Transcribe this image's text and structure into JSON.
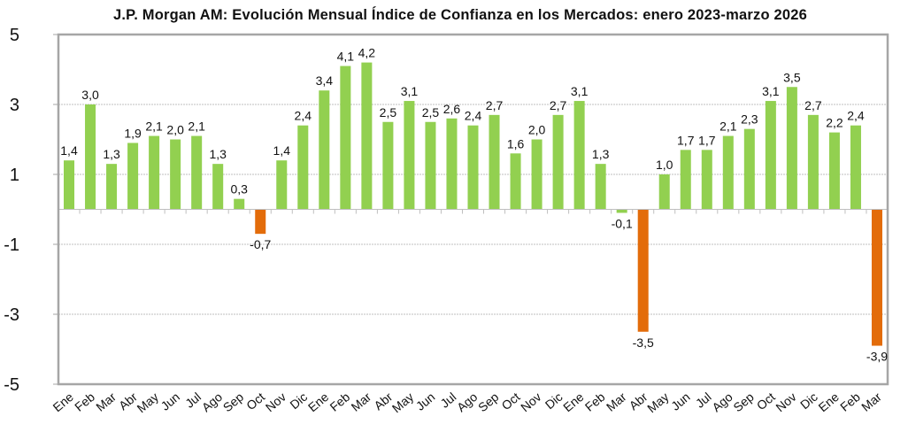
{
  "chart_data": {
    "type": "bar",
    "title": "J.P. Morgan AM: Evolución Mensual Índice de Confianza en los Mercados: enero 2023-marzo 2026",
    "xlabel": "",
    "ylabel": "",
    "ylim": [
      -5,
      5
    ],
    "yticks": [
      5,
      3,
      1,
      -1,
      -3,
      -5
    ],
    "grid": true,
    "legend": "none",
    "categories": [
      "Ene",
      "Feb",
      "Mar",
      "Abr",
      "May",
      "Jun",
      "Jul",
      "Ago",
      "Sep",
      "Oct",
      "Nov",
      "Dic",
      "Ene",
      "Feb",
      "Mar",
      "Abr",
      "May",
      "Jun",
      "Jul",
      "Ago",
      "Sep",
      "Oct",
      "Nov",
      "Dic",
      "Ene",
      "Feb",
      "Mar",
      "Abr",
      "May",
      "Jun",
      "Jul",
      "Ago",
      "Sep",
      "Oct",
      "Nov",
      "Dic",
      "Ene",
      "Feb",
      "Mar"
    ],
    "values": [
      1.4,
      3.0,
      1.3,
      1.9,
      2.1,
      2.0,
      2.1,
      1.3,
      0.3,
      -0.7,
      1.4,
      2.4,
      3.4,
      4.1,
      4.2,
      2.5,
      3.1,
      2.5,
      2.6,
      2.4,
      2.7,
      1.6,
      2.0,
      2.7,
      3.1,
      1.3,
      -0.1,
      -3.5,
      1.0,
      1.7,
      1.7,
      2.1,
      2.3,
      3.1,
      3.5,
      2.7,
      2.2,
      2.4,
      -3.9
    ],
    "labels": [
      "1,4",
      "3,0",
      "1,3",
      "1,9",
      "2,1",
      "2,0",
      "2,1",
      "1,3",
      "0,3",
      "-0,7",
      "1,4",
      "2,4",
      "3,4",
      "4,1",
      "4,2",
      "2,5",
      "3,1",
      "2,5",
      "2,6",
      "2,4",
      "2,7",
      "1,6",
      "2,0",
      "2,7",
      "3,1",
      "1,3",
      "-0,1",
      "-3,5",
      "1,0",
      "1,7",
      "1,7",
      "2,1",
      "2,3",
      "3,1",
      "3,5",
      "2,7",
      "2,2",
      "2,4",
      "-3,9"
    ],
    "colors": {
      "positive": "#92d050",
      "negative_highlight": "#e36c0a",
      "grid": "#bfbfbf",
      "frame": "#a6a6a6"
    },
    "highlighted_indices": [
      9,
      27,
      38
    ]
  }
}
